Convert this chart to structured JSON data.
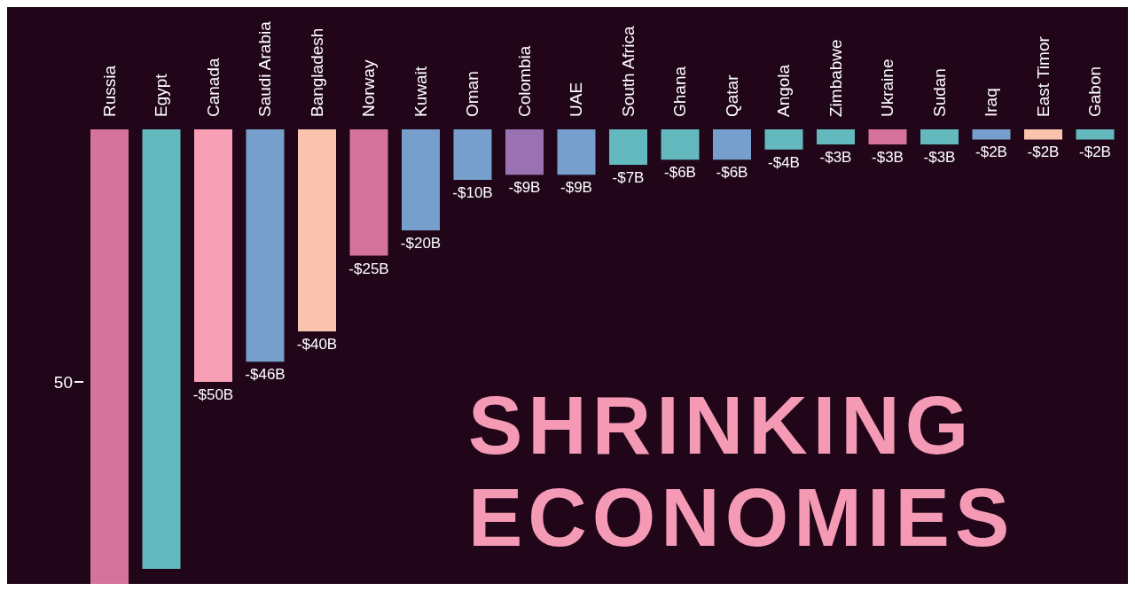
{
  "chart_data": {
    "type": "bar",
    "title": "SHRINKING ECONOMIES",
    "categories": [
      "Russia",
      "Egypt",
      "Canada",
      "Saudi Arabia",
      "Bangladesh",
      "Norway",
      "Kuwait",
      "Oman",
      "Colombia",
      "UAE",
      "South Africa",
      "Ghana",
      "Qatar",
      "Angola",
      "Zimbabwe",
      "Ukraine",
      "Sudan",
      "Iraq",
      "East Timor",
      "Gabon"
    ],
    "values": [
      -90,
      -87,
      -50,
      -46,
      -40,
      -25,
      -20,
      -10,
      -9,
      -9,
      -7,
      -6,
      -6,
      -4,
      -3,
      -3,
      -3,
      -2,
      -2,
      -2
    ],
    "value_labels": [
      null,
      null,
      "-$50B",
      "-$46B",
      "-$40B",
      "-$25B",
      "-$20B",
      "-$10B",
      "-$9B",
      "-$9B",
      "-$7B",
      "-$6B",
      "-$6B",
      "-$4B",
      "-$3B",
      "-$3B",
      "-$3B",
      "-$2B",
      "-$2B",
      "-$2B"
    ],
    "colors": [
      "#d6739c",
      "#63b9bd",
      "#f79fb5",
      "#779fcb",
      "#f9c3ad",
      "#d6739c",
      "#779fcb",
      "#779fcb",
      "#9a71b2",
      "#779fcb",
      "#63b9bd",
      "#63b9bd",
      "#779fcb",
      "#63b9bd",
      "#63b9bd",
      "#d6739c",
      "#63b9bd",
      "#779fcb",
      "#f9c3ad",
      "#63b9bd"
    ],
    "ylim": [
      -90,
      0
    ],
    "yticks": [
      {
        "value": -50,
        "label": "50"
      }
    ],
    "grid": false,
    "legend": false
  }
}
